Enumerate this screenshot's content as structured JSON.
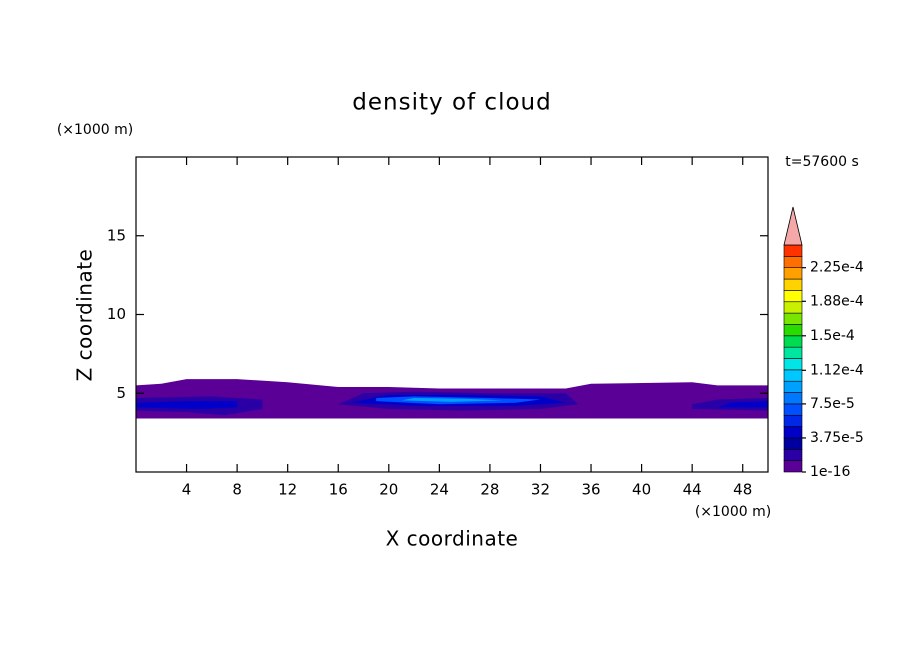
{
  "chart_data": {
    "type": "contour",
    "title": "density of cloud",
    "time_label": "t=57600 s",
    "x_label": "X coordinate",
    "y_label": "Z coordinate",
    "x_unit": "(×1000 m)",
    "y_unit": "(×1000 m)",
    "xlim": [
      0,
      50
    ],
    "ylim": [
      0,
      20
    ],
    "xticks": [
      4,
      8,
      12,
      16,
      20,
      24,
      28,
      32,
      36,
      40,
      44,
      48
    ],
    "yticks": [
      5,
      10,
      15
    ],
    "levels": [
      1e-16,
      1.25e-05,
      2.5e-05,
      3.75e-05,
      5e-05,
      6.25e-05,
      7.5e-05,
      8.75e-05,
      0.0001,
      0.0001125,
      0.000125,
      0.0001375,
      0.00015,
      0.0001625,
      0.000175,
      0.0001875,
      0.0002,
      0.0002125,
      0.000225,
      0.0002375,
      0.00025
    ],
    "colors": [
      "#5a0096",
      "#2a00a6",
      "#0000a0",
      "#0000c8",
      "#0028e6",
      "#0050ff",
      "#0078ff",
      "#00a0ff",
      "#00c8ff",
      "#00e6e6",
      "#00e6a0",
      "#00dc50",
      "#28dc00",
      "#78e600",
      "#c8f000",
      "#ffff00",
      "#ffd200",
      "#ffa000",
      "#ff6e00",
      "#ff3200"
    ],
    "extend_color": "#f4a8a8",
    "colorbar_ticks": [
      {
        "value": 1e-16,
        "label": "1e-16"
      },
      {
        "value": 3.75e-05,
        "label": "3.75e-5"
      },
      {
        "value": 7.5e-05,
        "label": "7.5e-5"
      },
      {
        "value": 0.000112,
        "label": "1.12e-4"
      },
      {
        "value": 0.00015,
        "label": "1.5e-4"
      },
      {
        "value": 0.000188,
        "label": "1.88e-4"
      },
      {
        "value": 0.000225,
        "label": "2.25e-4"
      }
    ],
    "regions": [
      {
        "level": 1e-16,
        "x": [
          0,
          50,
          50,
          46,
          44,
          36,
          34,
          24,
          20,
          16,
          12,
          8,
          4,
          2,
          0
        ],
        "z": [
          3.4,
          3.4,
          5.5,
          5.5,
          5.7,
          5.6,
          5.3,
          5.3,
          5.4,
          5.4,
          5.7,
          5.9,
          5.9,
          5.6,
          5.5
        ]
      },
      {
        "level": 1.25e-05,
        "x": [
          0,
          4,
          7,
          10,
          10,
          6,
          0
        ],
        "z": [
          3.9,
          3.8,
          3.6,
          4.0,
          4.6,
          4.8,
          4.7
        ]
      },
      {
        "level": 3.75e-05,
        "x": [
          0,
          5,
          8,
          8,
          4,
          0
        ],
        "z": [
          4.1,
          4.0,
          4.1,
          4.5,
          4.5,
          4.4
        ]
      },
      {
        "level": 1.25e-05,
        "x": [
          16,
          20,
          26,
          32,
          35,
          34,
          28,
          22,
          18
        ],
        "z": [
          4.3,
          4.0,
          3.9,
          4.0,
          4.3,
          5.0,
          5.0,
          5.1,
          5.0
        ]
      },
      {
        "level": 3.75e-05,
        "x": [
          17,
          22,
          30,
          34,
          32,
          26,
          20
        ],
        "z": [
          4.4,
          4.2,
          4.2,
          4.4,
          4.8,
          4.9,
          4.9
        ]
      },
      {
        "level": 6.25e-05,
        "x": [
          19,
          24,
          30,
          32,
          28,
          22,
          19
        ],
        "z": [
          4.5,
          4.3,
          4.4,
          4.6,
          4.7,
          4.8,
          4.7
        ]
      },
      {
        "level": 8.75e-05,
        "x": [
          21,
          25,
          29,
          26,
          22
        ],
        "z": [
          4.55,
          4.45,
          4.55,
          4.65,
          4.7
        ]
      },
      {
        "level": 1.25e-05,
        "x": [
          44,
          50,
          50,
          46,
          44
        ],
        "z": [
          4.0,
          3.9,
          4.7,
          4.6,
          4.3
        ]
      },
      {
        "level": 3.75e-05,
        "x": [
          46,
          50,
          50,
          47
        ],
        "z": [
          4.1,
          4.1,
          4.5,
          4.4
        ]
      }
    ]
  }
}
